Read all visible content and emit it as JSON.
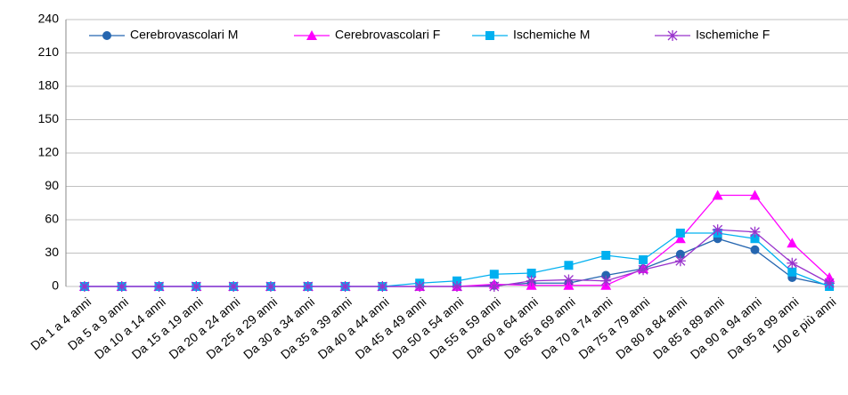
{
  "chart_data": {
    "type": "line",
    "categories": [
      "Da 1 a 4 anni",
      "Da 5 a 9 anni",
      "Da 10 a 14 anni",
      "Da 15 a 19 anni",
      "Da 20 a 24 anni",
      "Da 25 a 29 anni",
      "Da 30 a 34 anni",
      "Da 35 a 39 anni",
      "Da 40 a 44 anni",
      "Da 45 a 49 anni",
      "Da 50 a 54 anni",
      "Da 55 a 59 anni",
      "Da 60 a 64 anni",
      "Da 65 a 69 anni",
      "Da 70 a 74 anni",
      "Da 75 a 79 anni",
      "Da 80 a 84 anni",
      "Da 85 a 89 anni",
      "Da 90 a 94 anni",
      "Da 95 a 99 anni",
      "100 e più anni"
    ],
    "series": [
      {
        "name": "Cerebrovascolari M",
        "color": "#2566b0",
        "marker": "circle",
        "values": [
          0,
          0,
          0,
          0,
          0,
          0,
          0,
          0,
          0,
          0,
          0,
          1,
          3,
          3,
          10,
          16,
          29,
          43,
          33,
          8,
          1
        ]
      },
      {
        "name": "Cerebrovascolari F",
        "color": "#ff00ff",
        "marker": "triangle",
        "values": [
          0,
          0,
          0,
          0,
          0,
          0,
          0,
          0,
          0,
          0,
          0,
          2,
          1,
          1,
          1,
          16,
          43,
          82,
          82,
          39,
          8
        ]
      },
      {
        "name": "Ischemiche M",
        "color": "#00b0f0",
        "marker": "square",
        "values": [
          0,
          0,
          0,
          0,
          0,
          0,
          0,
          0,
          0,
          3,
          5,
          11,
          12,
          19,
          28,
          24,
          48,
          48,
          43,
          13,
          0
        ]
      },
      {
        "name": "Ischemiche F",
        "color": "#9933cc",
        "marker": "star",
        "values": [
          0,
          0,
          0,
          0,
          0,
          0,
          0,
          0,
          0,
          0,
          0,
          0,
          5,
          6,
          5,
          15,
          23,
          51,
          49,
          21,
          3
        ]
      }
    ],
    "ylim": [
      0,
      240
    ],
    "yticks": [
      0,
      30,
      60,
      90,
      120,
      150,
      180,
      210,
      240
    ],
    "grid": true,
    "legend": "top"
  }
}
